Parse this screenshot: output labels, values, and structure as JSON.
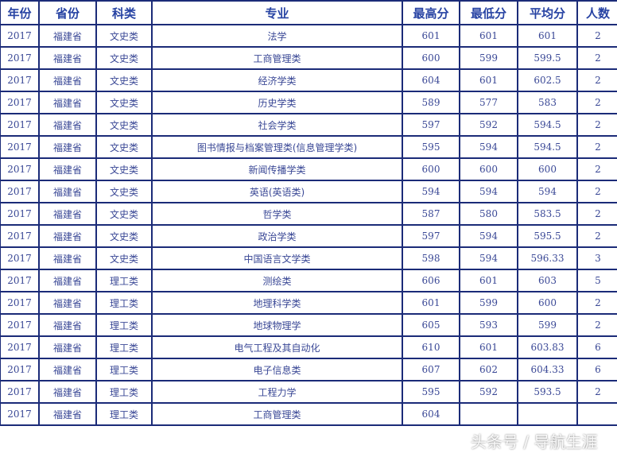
{
  "headers": [
    "年份",
    "省份",
    "科类",
    "专业",
    "最高分",
    "最低分",
    "平均分",
    "人数"
  ],
  "rows": [
    [
      "2017",
      "福建省",
      "文史类",
      "法学",
      "601",
      "601",
      "601",
      "2"
    ],
    [
      "2017",
      "福建省",
      "文史类",
      "工商管理类",
      "600",
      "599",
      "599.5",
      "2"
    ],
    [
      "2017",
      "福建省",
      "文史类",
      "经济学类",
      "604",
      "601",
      "602.5",
      "2"
    ],
    [
      "2017",
      "福建省",
      "文史类",
      "历史学类",
      "589",
      "577",
      "583",
      "2"
    ],
    [
      "2017",
      "福建省",
      "文史类",
      "社会学类",
      "597",
      "592",
      "594.5",
      "2"
    ],
    [
      "2017",
      "福建省",
      "文史类",
      "图书情报与档案管理类(信息管理学类)",
      "595",
      "594",
      "594.5",
      "2"
    ],
    [
      "2017",
      "福建省",
      "文史类",
      "新闻传播学类",
      "600",
      "600",
      "600",
      "2"
    ],
    [
      "2017",
      "福建省",
      "文史类",
      "英语(英语类)",
      "594",
      "594",
      "594",
      "2"
    ],
    [
      "2017",
      "福建省",
      "文史类",
      "哲学类",
      "587",
      "580",
      "583.5",
      "2"
    ],
    [
      "2017",
      "福建省",
      "文史类",
      "政治学类",
      "597",
      "594",
      "595.5",
      "2"
    ],
    [
      "2017",
      "福建省",
      "文史类",
      "中国语言文学类",
      "598",
      "594",
      "596.33",
      "3"
    ],
    [
      "2017",
      "福建省",
      "理工类",
      "测绘类",
      "606",
      "601",
      "603",
      "5"
    ],
    [
      "2017",
      "福建省",
      "理工类",
      "地理科学类",
      "601",
      "599",
      "600",
      "2"
    ],
    [
      "2017",
      "福建省",
      "理工类",
      "地球物理学",
      "605",
      "593",
      "599",
      "2"
    ],
    [
      "2017",
      "福建省",
      "理工类",
      "电气工程及其自动化",
      "610",
      "601",
      "603.83",
      "6"
    ],
    [
      "2017",
      "福建省",
      "理工类",
      "电子信息类",
      "607",
      "602",
      "604.33",
      "6"
    ],
    [
      "2017",
      "福建省",
      "理工类",
      "工程力学",
      "595",
      "592",
      "593.5",
      "2"
    ],
    [
      "2017",
      "福建省",
      "理工类",
      "工商管理类",
      "604",
      "",
      "",
      ""
    ]
  ],
  "watermark": "头条号 / 导航生涯"
}
